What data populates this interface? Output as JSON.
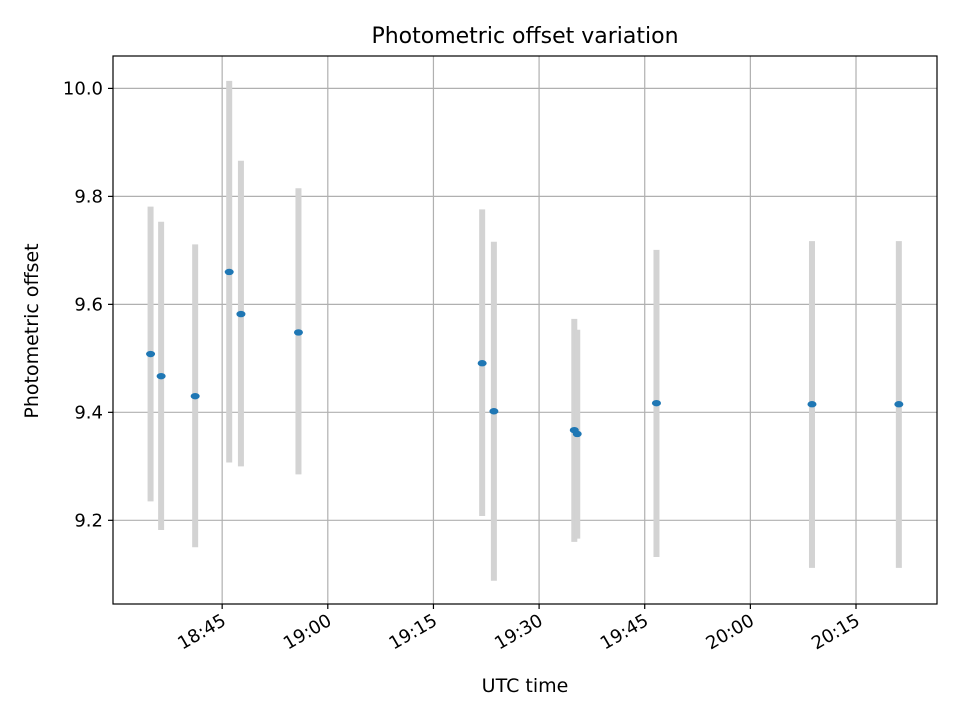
{
  "chart_data": {
    "type": "scatter",
    "title": "Photometric offset variation",
    "xlabel": "UTC time",
    "ylabel": "Photometric offset",
    "xlim": [
      "18:29:30",
      "20:26:30"
    ],
    "ylim": [
      9.045,
      10.06
    ],
    "x_ticks": [
      "18:45",
      "19:00",
      "19:15",
      "19:30",
      "19:45",
      "20:00",
      "20:15"
    ],
    "y_ticks": [
      9.2,
      9.4,
      9.6,
      9.8,
      10.0
    ],
    "y_tick_labels": [
      "9.2",
      "9.4",
      "9.6",
      "9.8",
      "10.0"
    ],
    "grid": true,
    "colors": {
      "point": "#1f77b4",
      "errorbar": "#d3d3d3",
      "grid": "#b0b0b0"
    },
    "points": [
      {
        "time": "18:34:50",
        "y": 9.508,
        "err_low": 9.235,
        "err_high": 9.781
      },
      {
        "time": "18:36:20",
        "y": 9.467,
        "err_low": 9.182,
        "err_high": 9.753
      },
      {
        "time": "18:41:10",
        "y": 9.43,
        "err_low": 9.15,
        "err_high": 9.711
      },
      {
        "time": "18:46:00",
        "y": 9.66,
        "err_low": 9.307,
        "err_high": 10.014
      },
      {
        "time": "18:47:40",
        "y": 9.582,
        "err_low": 9.3,
        "err_high": 9.866
      },
      {
        "time": "18:55:50",
        "y": 9.548,
        "err_low": 9.285,
        "err_high": 9.815
      },
      {
        "time": "19:21:55",
        "y": 9.491,
        "err_low": 9.208,
        "err_high": 9.776
      },
      {
        "time": "19:23:35",
        "y": 9.402,
        "err_low": 9.088,
        "err_high": 9.716
      },
      {
        "time": "19:35:00",
        "y": 9.367,
        "err_low": 9.16,
        "err_high": 9.573
      },
      {
        "time": "19:35:25",
        "y": 9.36,
        "err_low": 9.166,
        "err_high": 9.553
      },
      {
        "time": "19:46:40",
        "y": 9.417,
        "err_low": 9.132,
        "err_high": 9.701
      },
      {
        "time": "20:08:45",
        "y": 9.415,
        "err_low": 9.112,
        "err_high": 9.717
      },
      {
        "time": "20:21:05",
        "y": 9.415,
        "err_low": 9.112,
        "err_high": 9.717
      }
    ]
  }
}
